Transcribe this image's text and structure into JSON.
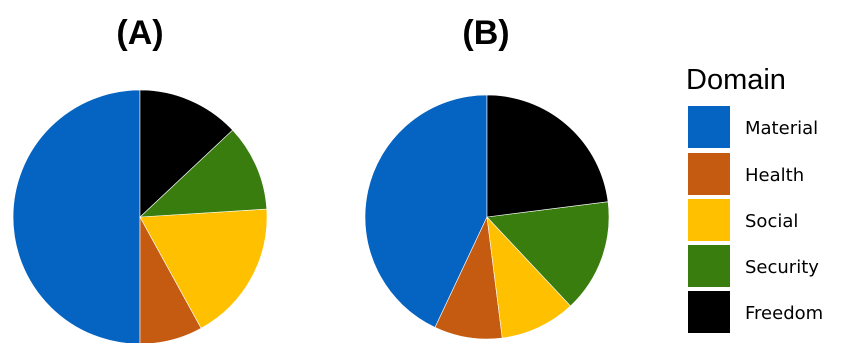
{
  "chart_data": [
    {
      "type": "pie",
      "title": "(A)",
      "categories": [
        "Material",
        "Health",
        "Social",
        "Security",
        "Freedom"
      ],
      "values": [
        50,
        8,
        18,
        11,
        13
      ],
      "colors": [
        "#0563C1",
        "#C55A11",
        "#FFC000",
        "#3A7D0F",
        "#000000"
      ],
      "start": "12 o'clock",
      "direction": "counter-clockwise"
    },
    {
      "type": "pie",
      "title": "(B)",
      "categories": [
        "Material",
        "Health",
        "Social",
        "Security",
        "Freedom"
      ],
      "values": [
        43,
        9,
        10,
        15,
        23
      ],
      "colors": [
        "#0563C1",
        "#C55A11",
        "#FFC000",
        "#3A7D0F",
        "#000000"
      ],
      "start": "12 o'clock",
      "direction": "counter-clockwise"
    }
  ],
  "legend": {
    "title": "Domain",
    "placement": "right",
    "items": [
      {
        "label": "Material",
        "color": "#0563C1"
      },
      {
        "label": "Health",
        "color": "#C55A11"
      },
      {
        "label": "Social",
        "color": "#FFC000"
      },
      {
        "label": "Security",
        "color": "#3A7D0F"
      },
      {
        "label": "Freedom",
        "color": "#000000"
      }
    ]
  }
}
